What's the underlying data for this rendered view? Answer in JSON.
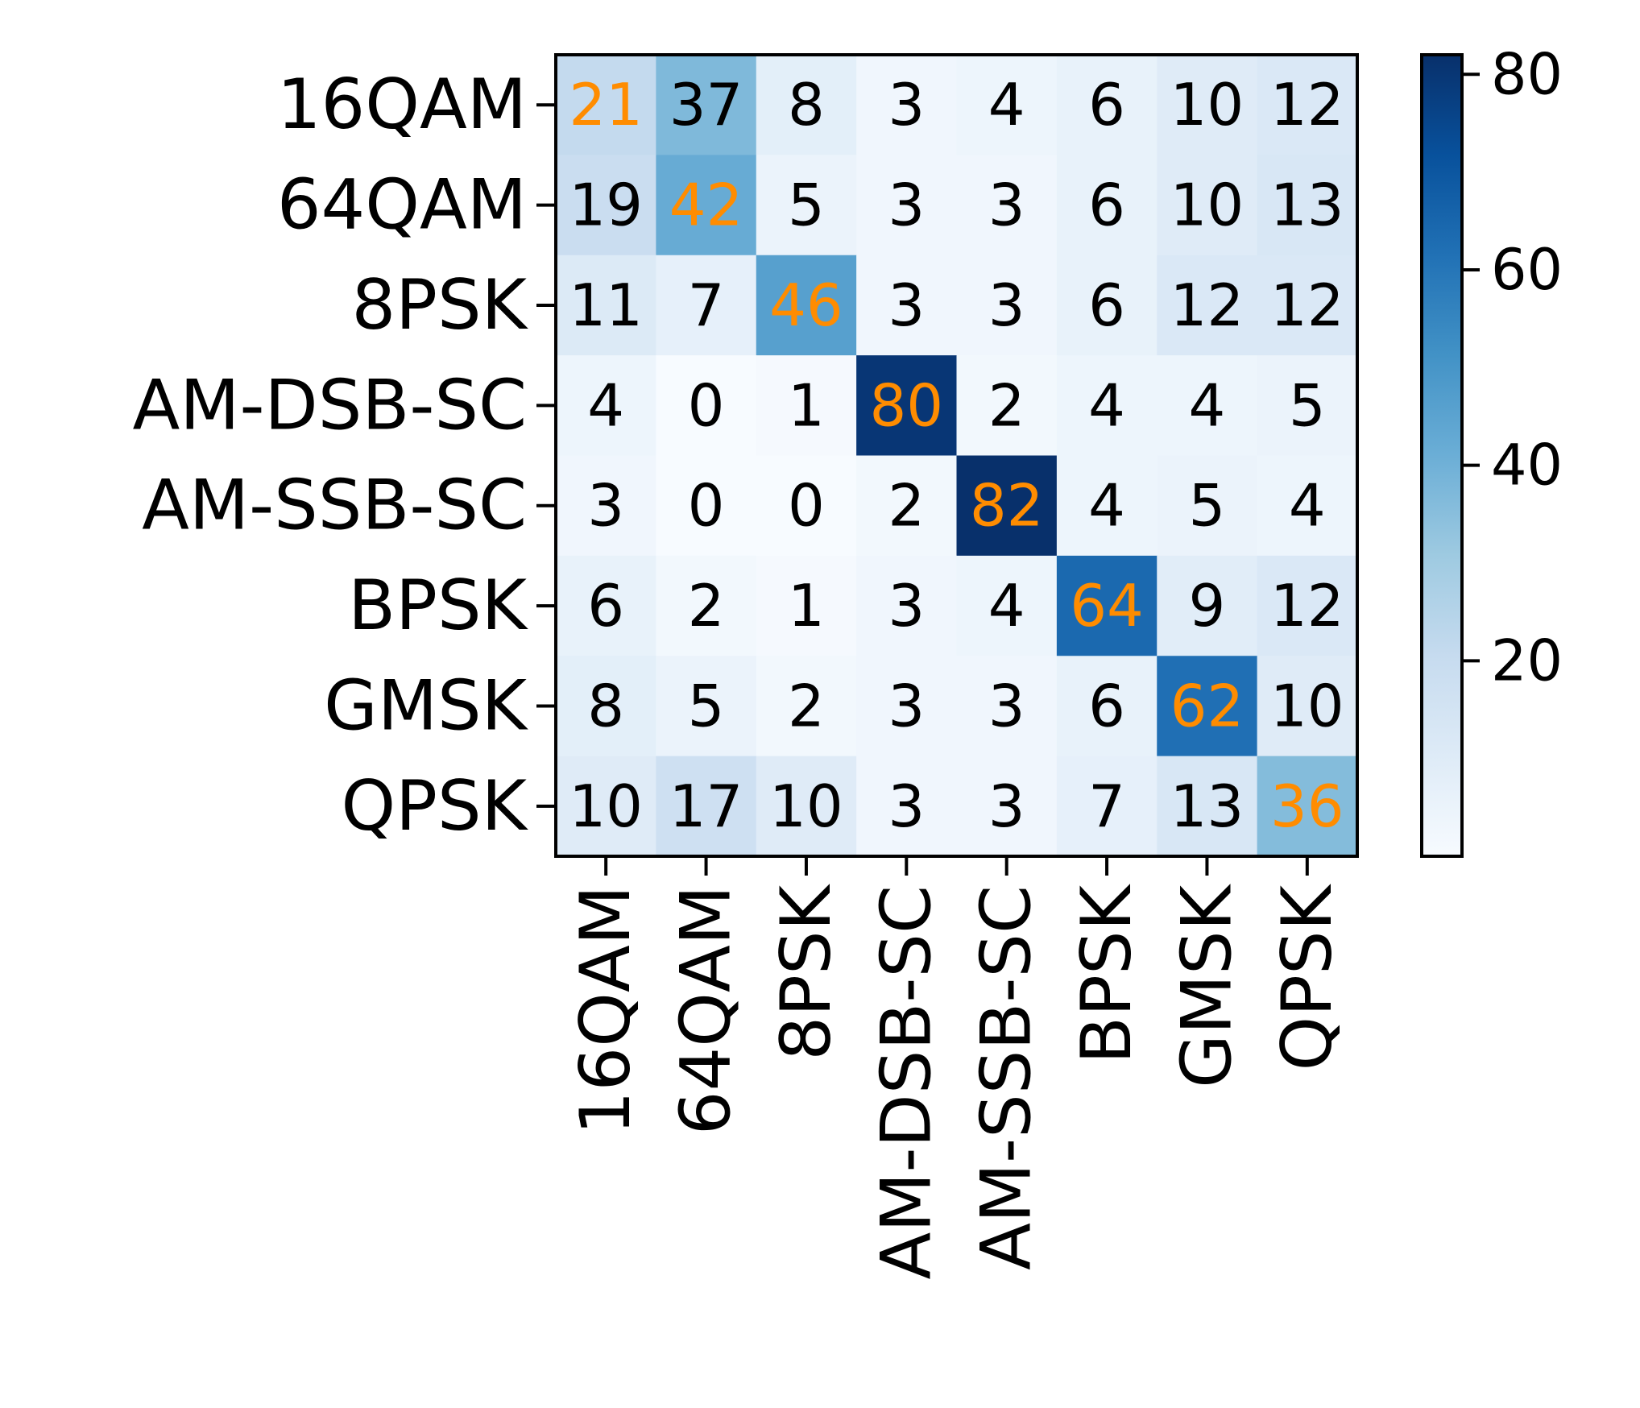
{
  "chart_data": {
    "type": "heatmap",
    "title": "",
    "xlabel": "",
    "ylabel": "",
    "rows": [
      "16QAM",
      "64QAM",
      "8PSK",
      "AM-DSB-SC",
      "AM-SSB-SC",
      "BPSK",
      "GMSK",
      "QPSK"
    ],
    "columns": [
      "16QAM",
      "64QAM",
      "8PSK",
      "AM-DSB-SC",
      "AM-SSB-SC",
      "BPSK",
      "GMSK",
      "QPSK"
    ],
    "values": [
      [
        21,
        37,
        8,
        3,
        4,
        6,
        10,
        12
      ],
      [
        19,
        42,
        5,
        3,
        3,
        6,
        10,
        13
      ],
      [
        11,
        7,
        46,
        3,
        3,
        6,
        12,
        12
      ],
      [
        4,
        0,
        1,
        80,
        2,
        4,
        4,
        5
      ],
      [
        3,
        0,
        0,
        2,
        82,
        4,
        5,
        4
      ],
      [
        6,
        2,
        1,
        3,
        4,
        64,
        9,
        12
      ],
      [
        8,
        5,
        2,
        3,
        3,
        6,
        62,
        10
      ],
      [
        10,
        17,
        10,
        3,
        3,
        7,
        13,
        36
      ]
    ],
    "colormap": "Blues",
    "colorbar": {
      "range": [
        0,
        82
      ],
      "ticks": [
        20,
        40,
        60,
        80
      ]
    },
    "colors": {
      "diagonal_text": "#ff8c00",
      "offdiagonal_text": "#000000"
    },
    "grid": false,
    "legend": "colorbar-right"
  }
}
